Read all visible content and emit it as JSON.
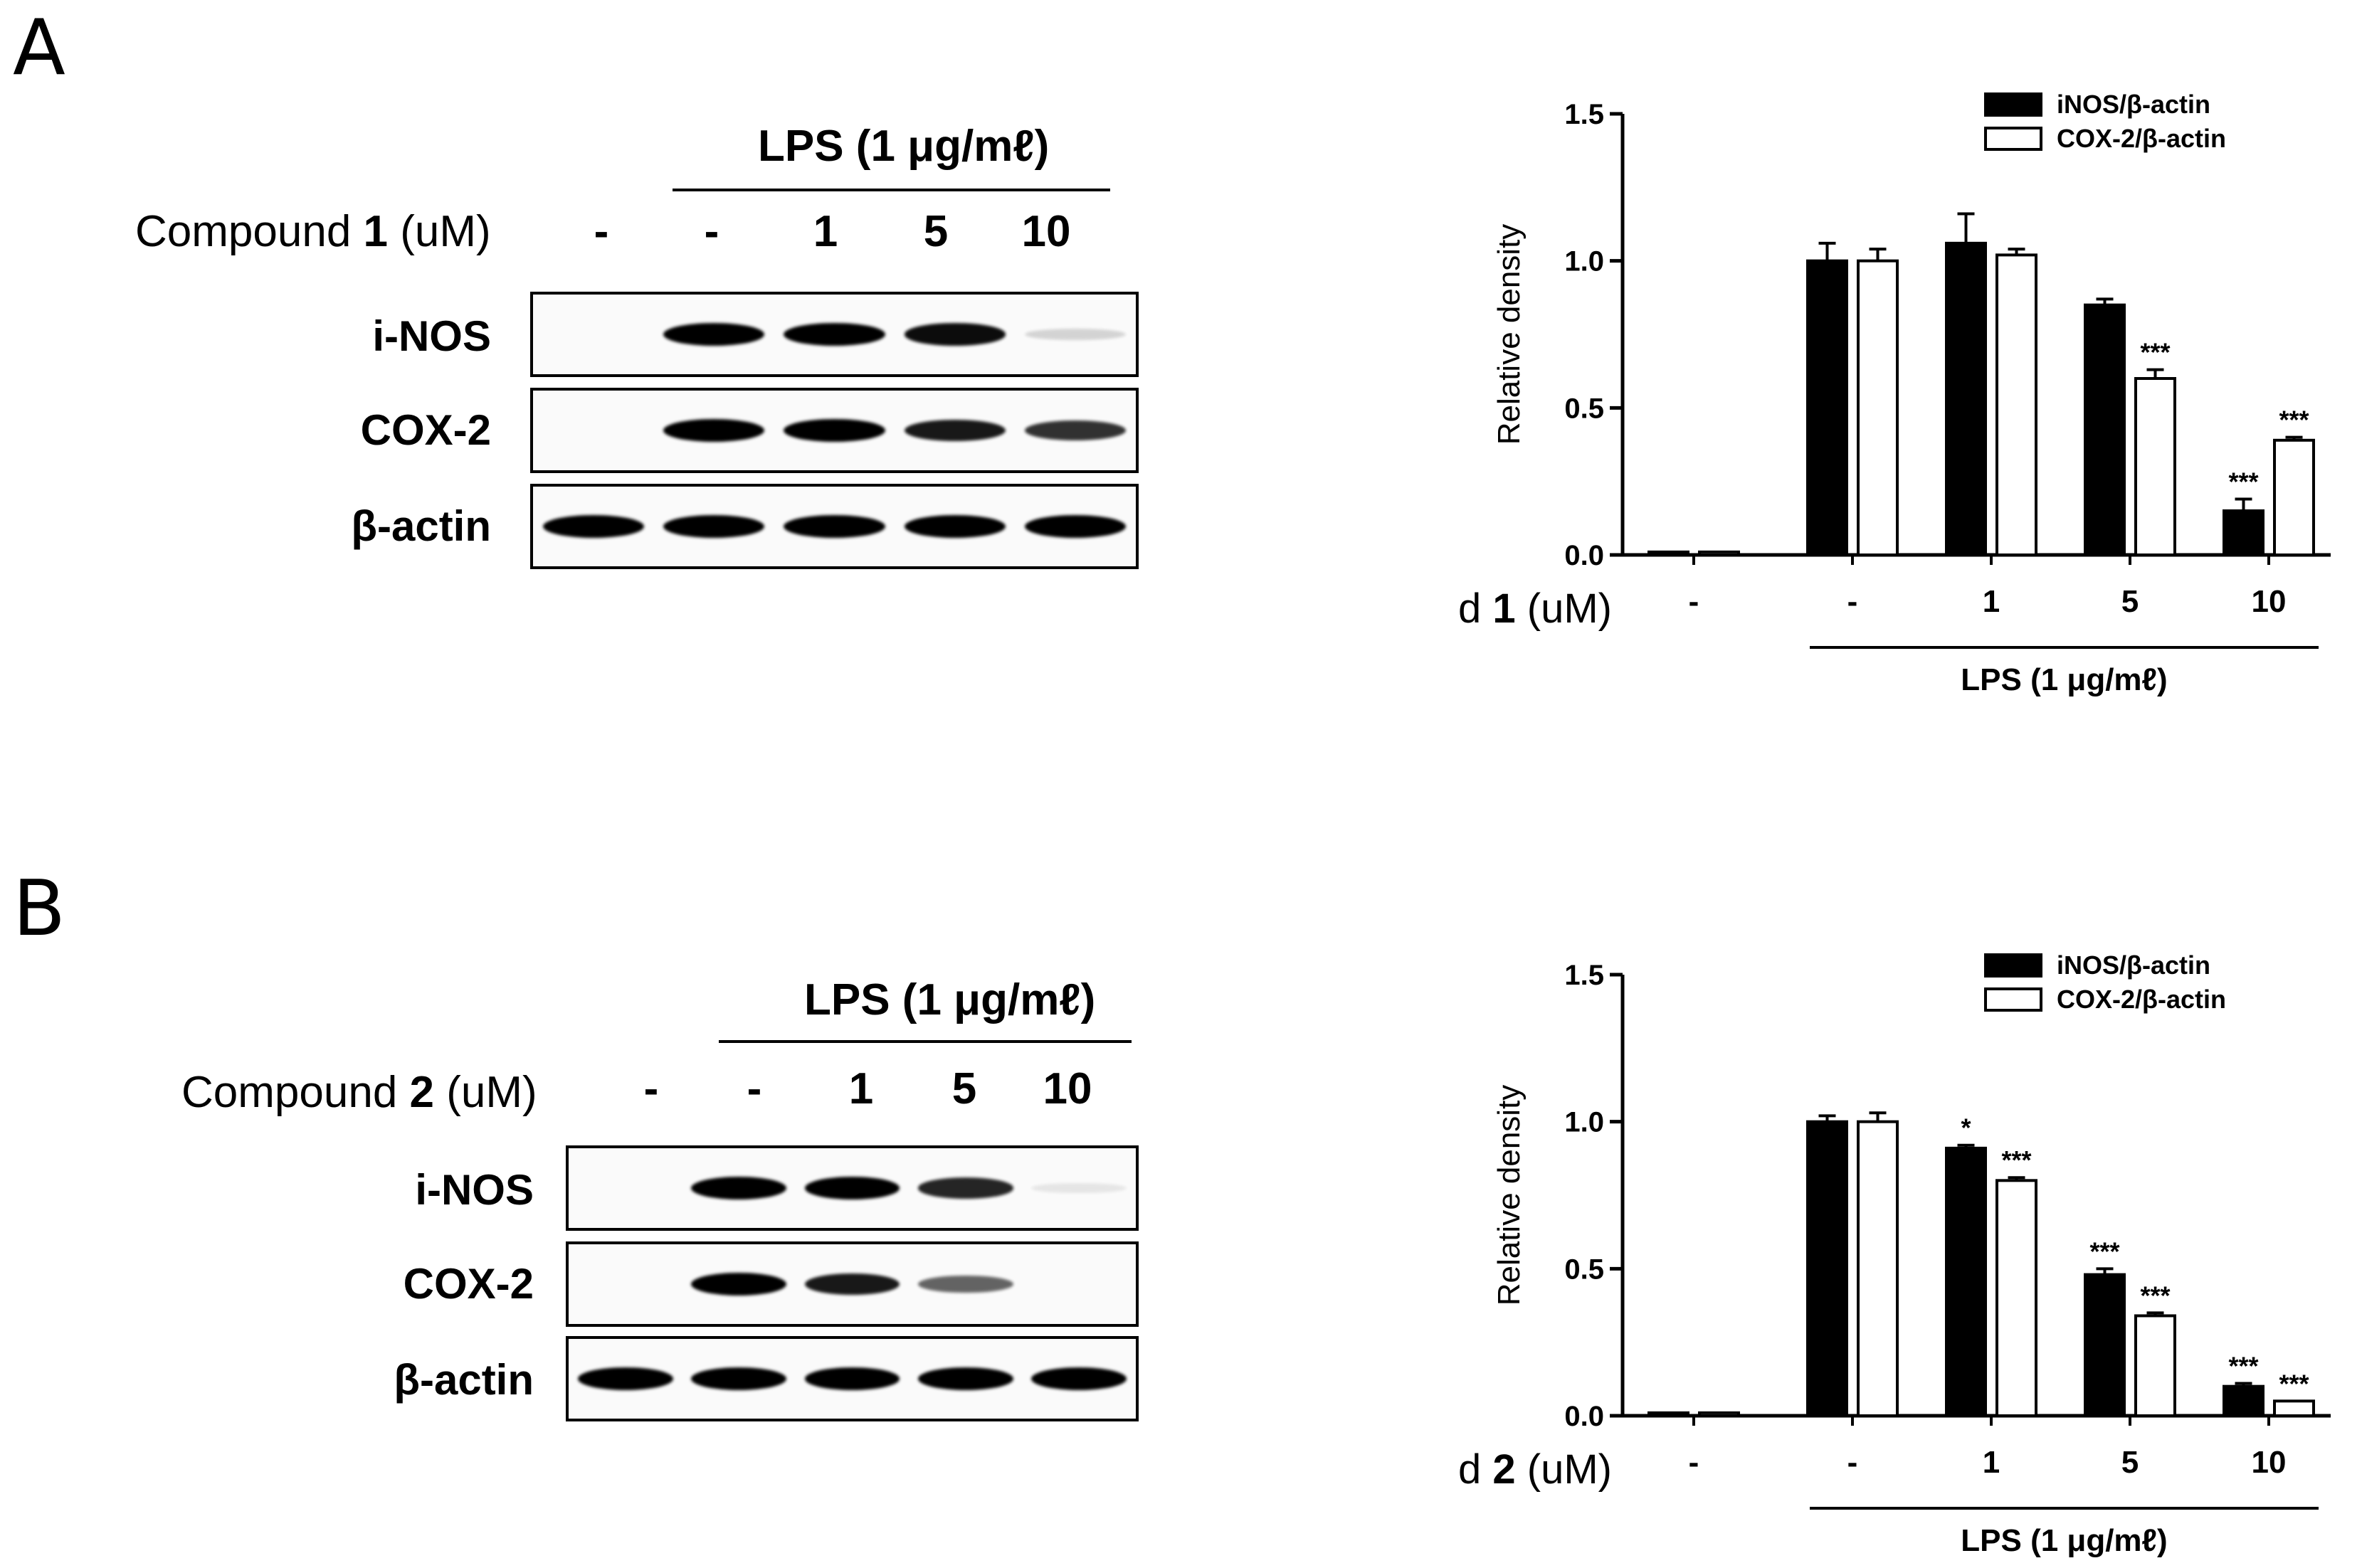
{
  "panels": [
    {
      "letter": "A",
      "blot": {
        "treatment_label": "LPS (1 μg/mℓ)",
        "compound_prefix": "Compound ",
        "compound_number": "1",
        "compound_unit": " (uM)",
        "lanes": [
          "-",
          "-",
          "1",
          "5",
          "10"
        ],
        "rows": [
          {
            "label": "i-NOS",
            "band_intensity": [
              0,
              1,
              1,
              0.95,
              0.15
            ]
          },
          {
            "label": "COX-2",
            "band_intensity": [
              0,
              1,
              1,
              0.9,
              0.8
            ]
          },
          {
            "label": "β-actin",
            "band_intensity": [
              1,
              1,
              1,
              1,
              1
            ]
          }
        ]
      },
      "chart_data": {
        "type": "bar",
        "ylabel": "Relative density",
        "ylim": [
          0,
          1.5
        ],
        "yticks": [
          "0.0",
          "0.5",
          "1.0",
          "1.5"
        ],
        "categories": [
          "-",
          "-",
          "1",
          "5",
          "10"
        ],
        "xlabel_prefix": "Compound ",
        "xlabel_number": "1",
        "xlabel_unit": " (uM)",
        "group_label": "LPS (1 μg/mℓ)",
        "legend_position": "top-right",
        "series": [
          {
            "name": "iNOS/β-actin",
            "fill": "#000000",
            "values": [
              0.01,
              1.0,
              1.06,
              0.85,
              0.15
            ],
            "errors": [
              0.0,
              0.06,
              0.1,
              0.02,
              0.04
            ],
            "annotations": [
              "",
              "",
              "",
              "",
              "***"
            ]
          },
          {
            "name": "COX-2/β-actin",
            "fill": "#ffffff",
            "values": [
              0.01,
              1.0,
              1.02,
              0.6,
              0.39
            ],
            "errors": [
              0.0,
              0.04,
              0.02,
              0.03,
              0.01
            ],
            "annotations": [
              "",
              "",
              "",
              "***",
              "***"
            ]
          }
        ]
      }
    },
    {
      "letter": "B",
      "blot": {
        "treatment_label": "LPS (1 μg/mℓ)",
        "compound_prefix": "Compound ",
        "compound_number": "2",
        "compound_unit": " (uM)",
        "lanes": [
          "-",
          "-",
          "1",
          "5",
          "10"
        ],
        "rows": [
          {
            "label": "i-NOS",
            "band_intensity": [
              0,
              1,
              1,
              0.85,
              0.05
            ]
          },
          {
            "label": "COX-2",
            "band_intensity": [
              0,
              1,
              0.9,
              0.6,
              0
            ]
          },
          {
            "label": "β-actin",
            "band_intensity": [
              1,
              1,
              1,
              1,
              1
            ]
          }
        ]
      },
      "chart_data": {
        "type": "bar",
        "ylabel": "Relative density",
        "ylim": [
          0,
          1.5
        ],
        "yticks": [
          "0.0",
          "0.5",
          "1.0",
          "1.5"
        ],
        "categories": [
          "-",
          "-",
          "1",
          "5",
          "10"
        ],
        "xlabel_prefix": "Compound ",
        "xlabel_number": "2",
        "xlabel_unit": " (uM)",
        "group_label": "LPS (1 μg/mℓ)",
        "legend_position": "top-right",
        "series": [
          {
            "name": "iNOS/β-actin",
            "fill": "#000000",
            "values": [
              0.01,
              1.0,
              0.91,
              0.48,
              0.1
            ],
            "errors": [
              0.0,
              0.02,
              0.01,
              0.02,
              0.01
            ],
            "annotations": [
              "",
              "",
              "*",
              "***",
              "***"
            ]
          },
          {
            "name": "COX-2/β-actin",
            "fill": "#ffffff",
            "values": [
              0.01,
              1.0,
              0.8,
              0.34,
              0.05
            ],
            "errors": [
              0.0,
              0.03,
              0.01,
              0.01,
              0.0
            ],
            "annotations": [
              "",
              "",
              "***",
              "***",
              "***"
            ]
          }
        ]
      }
    }
  ]
}
